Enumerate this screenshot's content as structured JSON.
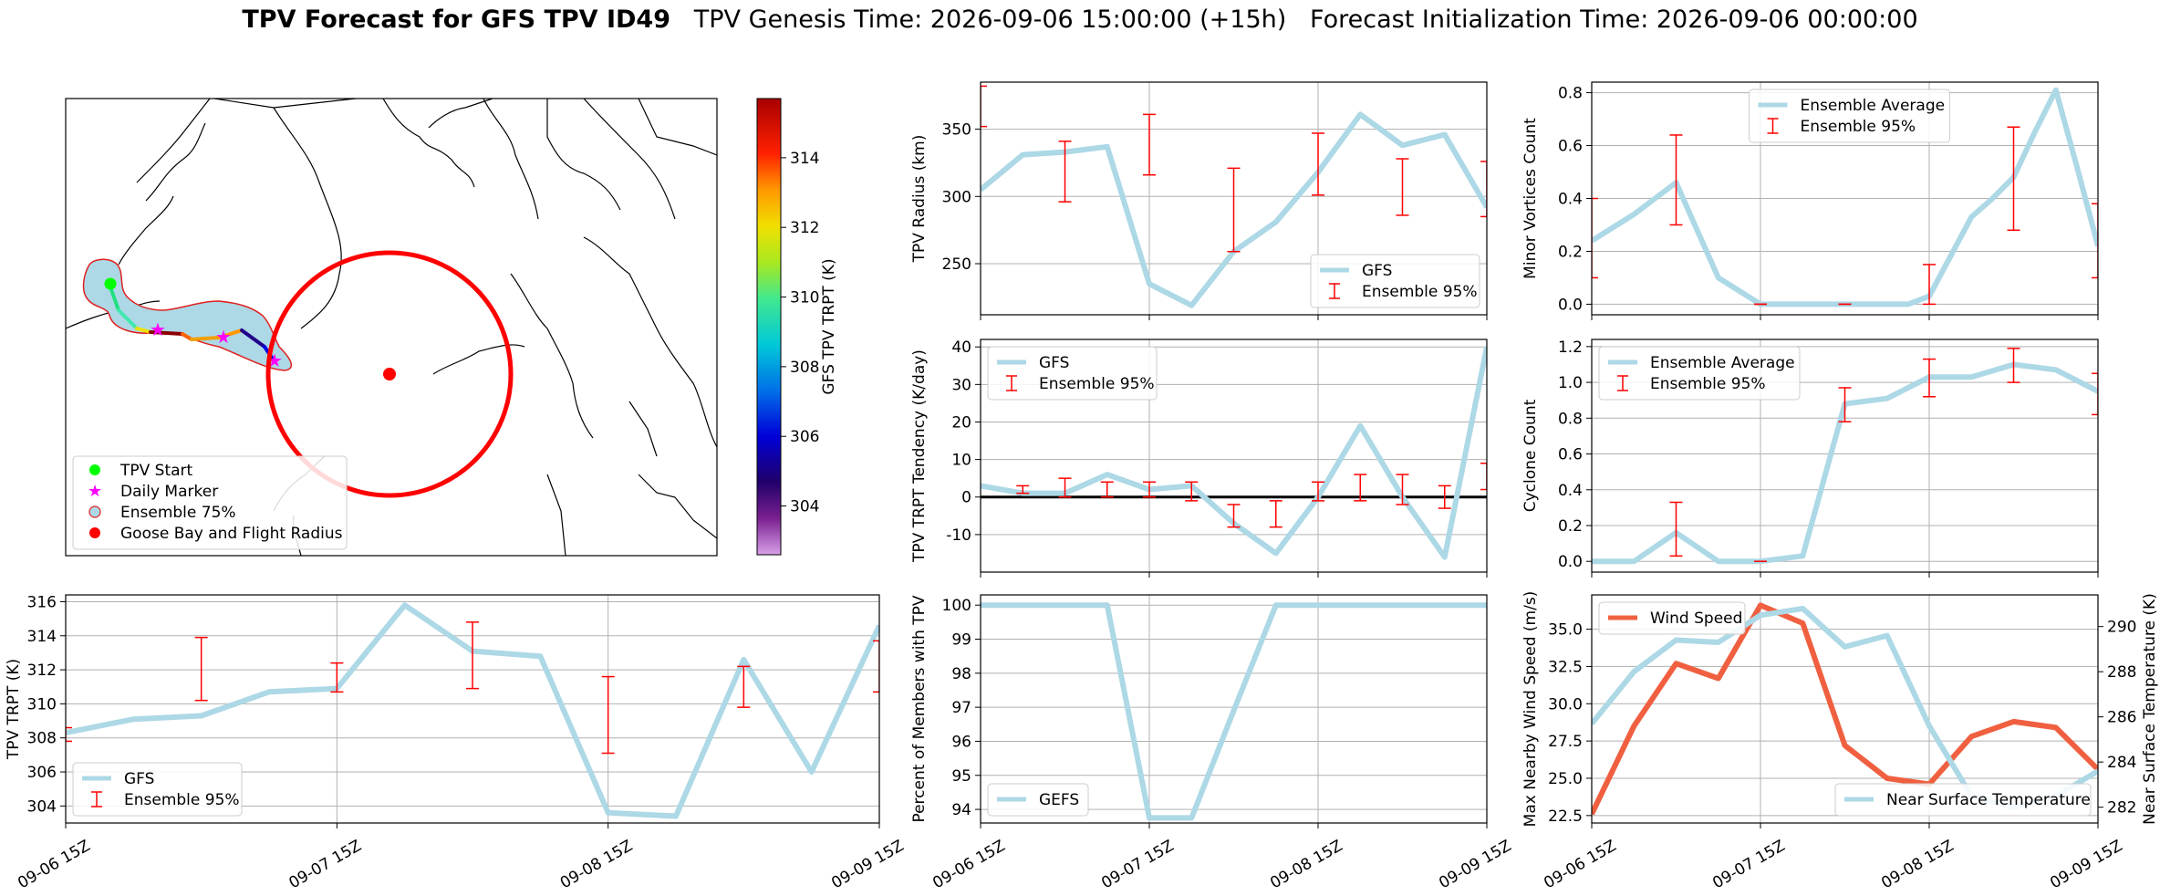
{
  "figure": {
    "title_bold": "TPV Forecast for GFS TPV ID49",
    "title_rest": "   TPV Genesis Time: 2026-09-06 15:00:00 (+15h)   Forecast Initialization Time: 2026-09-06 00:00:00"
  },
  "colors": {
    "line": "#add8e6",
    "errorbar": "#ff0000",
    "wind": "#f06040",
    "temp_axis": "#4169e1",
    "zero_line": "#000000"
  },
  "map": {
    "colorbar_label": "GFS TPV TRPT (K)",
    "colorbar_ticks": [
      304,
      306,
      308,
      310,
      312,
      314
    ],
    "colorbar_range": [
      302.6,
      315.7
    ],
    "legend": [
      {
        "label": "TPV Start",
        "marker": "green-circle"
      },
      {
        "label": "Daily Marker",
        "marker": "magenta-star"
      },
      {
        "label": "Ensemble 75%",
        "marker": "lightblue-circle-red-edge"
      },
      {
        "label": "Goose Bay and Flight Radius",
        "marker": "red-circle"
      }
    ]
  },
  "chart_data": [
    {
      "id": "radius",
      "type": "line",
      "ylabel": "TPV Radius (km)",
      "ylim": [
        212,
        385
      ],
      "yticks": [
        250,
        300,
        350
      ],
      "xlim": [
        0,
        72
      ],
      "x_grid": [
        24,
        48
      ],
      "xtick_labels": [],
      "series": [
        {
          "name": "GFS",
          "kind": "line",
          "x": [
            0,
            6,
            12,
            18,
            24,
            30,
            36,
            42,
            48,
            54,
            60,
            66,
            72
          ],
          "y": [
            305,
            331,
            333,
            337,
            235,
            219,
            259,
            281,
            318,
            361,
            338,
            346,
            292
          ]
        },
        {
          "name": "Ensemble 95%",
          "kind": "errorbar",
          "x": [
            0,
            12,
            24,
            36,
            48,
            60,
            72
          ],
          "low": [
            352,
            296,
            316,
            259,
            301,
            286,
            285
          ],
          "high": [
            382,
            341,
            361,
            321,
            347,
            328,
            326
          ]
        }
      ],
      "legend": [
        "GFS",
        "Ensemble 95%"
      ],
      "legend_position": "lower-right"
    },
    {
      "id": "minor",
      "type": "line",
      "ylabel": "Minor Vortices Count",
      "ylim": [
        -0.04,
        0.84
      ],
      "yticks": [
        0.0,
        0.2,
        0.4,
        0.6,
        0.8
      ],
      "ytick_labels": [
        "0.0",
        "0.2",
        "0.4",
        "0.6",
        "0.8"
      ],
      "xlim": [
        0,
        72
      ],
      "x_grid": [
        24,
        48
      ],
      "xtick_labels": [],
      "series": [
        {
          "name": "Ensemble Average",
          "kind": "line",
          "x": [
            0,
            3,
            6,
            9,
            12,
            15,
            18,
            21,
            24,
            27,
            30,
            33,
            36,
            39,
            42,
            45,
            48,
            51,
            54,
            57,
            60,
            63,
            66,
            69,
            72
          ],
          "y": [
            0.24,
            0.29,
            0.34,
            0.4,
            0.46,
            0.28,
            0.1,
            0.05,
            0.0,
            0.0,
            0.0,
            0.0,
            0.0,
            0.0,
            0.0,
            0.0,
            0.03,
            0.18,
            0.33,
            0.4,
            0.48,
            0.65,
            0.81,
            0.52,
            0.22
          ]
        },
        {
          "name": "Ensemble 95%",
          "kind": "errorbar",
          "x": [
            0,
            12,
            24,
            36,
            48,
            60,
            72
          ],
          "low": [
            0.1,
            0.3,
            0.0,
            0.0,
            0.0,
            0.28,
            0.1
          ],
          "high": [
            0.4,
            0.64,
            0.0,
            0.0,
            0.15,
            0.67,
            0.38
          ]
        }
      ],
      "legend": [
        "Ensemble Average",
        "Ensemble 95%"
      ],
      "legend_position": "upper-center"
    },
    {
      "id": "tendency",
      "type": "line",
      "ylabel": "TPV TRPT Tendency (K/day)",
      "ylim": [
        -20,
        42
      ],
      "yticks": [
        -10,
        0,
        10,
        20,
        30,
        40
      ],
      "xlim": [
        0,
        72
      ],
      "x_grid": [
        24,
        48
      ],
      "xtick_labels": [],
      "zero_line": 0,
      "series": [
        {
          "name": "GFS",
          "kind": "line",
          "x": [
            0,
            6,
            12,
            18,
            24,
            30,
            36,
            42,
            48,
            54,
            60,
            66,
            72
          ],
          "y": [
            3,
            1,
            1,
            6,
            2,
            3,
            -7,
            -15,
            0,
            19,
            0,
            -16,
            40
          ]
        },
        {
          "name": "Ensemble 95%",
          "kind": "errorbar",
          "x": [
            6,
            12,
            18,
            24,
            30,
            36,
            42,
            48,
            54,
            60,
            66,
            72
          ],
          "low": [
            1,
            0,
            0,
            0,
            -1,
            -8,
            -8,
            -1,
            -1,
            -2,
            -3,
            2
          ],
          "high": [
            3,
            5,
            4,
            4,
            4,
            -2,
            -1,
            4,
            6,
            6,
            3,
            9
          ]
        }
      ],
      "legend": [
        "GFS",
        "Ensemble 95%"
      ],
      "legend_position": "upper-left"
    },
    {
      "id": "cyclone",
      "type": "line",
      "ylabel": "Cyclone Count",
      "ylim": [
        -0.06,
        1.24
      ],
      "yticks": [
        0.0,
        0.2,
        0.4,
        0.6,
        0.8,
        1.0,
        1.2
      ],
      "ytick_labels": [
        "0.0",
        "0.2",
        "0.4",
        "0.6",
        "0.8",
        "1.0",
        "1.2"
      ],
      "xlim": [
        0,
        72
      ],
      "x_grid": [
        24,
        48
      ],
      "xtick_labels": [],
      "series": [
        {
          "name": "Ensemble Average",
          "kind": "line",
          "x": [
            0,
            6,
            12,
            18,
            24,
            30,
            36,
            42,
            48,
            54,
            60,
            66,
            72
          ],
          "y": [
            0.0,
            0.0,
            0.16,
            0.0,
            0.0,
            0.03,
            0.88,
            0.91,
            1.03,
            1.03,
            1.1,
            1.07,
            0.95
          ]
        },
        {
          "name": "Ensemble 95%",
          "kind": "errorbar",
          "x": [
            12,
            24,
            36,
            48,
            60,
            72
          ],
          "low": [
            0.03,
            0.0,
            0.78,
            0.92,
            1.0,
            0.82
          ],
          "high": [
            0.33,
            0.0,
            0.97,
            1.13,
            1.19,
            1.05
          ]
        }
      ],
      "legend": [
        "Ensemble Average",
        "Ensemble 95%"
      ],
      "legend_position": "upper-left"
    },
    {
      "id": "trpt",
      "type": "line",
      "ylabel": "TPV TRPT (K)",
      "ylim": [
        303,
        316.4
      ],
      "yticks": [
        304,
        306,
        308,
        310,
        312,
        314,
        316
      ],
      "xlim": [
        0,
        72
      ],
      "x_grid": [
        24,
        48
      ],
      "xticks": [
        0,
        24,
        48,
        72
      ],
      "xtick_labels": [
        "09-06 15Z",
        "09-07 15Z",
        "09-08 15Z",
        "09-09 15Z"
      ],
      "series": [
        {
          "name": "GFS",
          "kind": "line",
          "x": [
            0,
            6,
            12,
            18,
            24,
            30,
            36,
            42,
            48,
            54,
            60,
            66,
            72
          ],
          "y": [
            308.3,
            309.1,
            309.3,
            310.7,
            310.9,
            315.8,
            313.1,
            312.8,
            303.6,
            303.4,
            312.6,
            306.0,
            314.6
          ]
        },
        {
          "name": "Ensemble 95%",
          "kind": "errorbar",
          "x": [
            0,
            12,
            24,
            36,
            48,
            60,
            72
          ],
          "low": [
            307.8,
            310.2,
            310.7,
            310.9,
            307.1,
            309.8,
            310.7
          ],
          "high": [
            308.6,
            313.9,
            312.4,
            314.8,
            311.6,
            312.2,
            313.7
          ]
        }
      ],
      "legend": [
        "GFS",
        "Ensemble 95%"
      ],
      "legend_position": "lower-left"
    },
    {
      "id": "members",
      "type": "line",
      "ylabel": "Percent of Members with TPV",
      "ylim": [
        93.6,
        100.3
      ],
      "yticks": [
        94,
        95,
        96,
        97,
        98,
        99,
        100
      ],
      "xlim": [
        0,
        72
      ],
      "x_grid": [
        24,
        48
      ],
      "xticks": [
        0,
        24,
        48,
        72
      ],
      "xtick_labels": [
        "09-06 15Z",
        "09-07 15Z",
        "09-08 15Z",
        "09-09 15Z"
      ],
      "series": [
        {
          "name": "GEFS",
          "kind": "line",
          "x": [
            0,
            6,
            12,
            18,
            24,
            30,
            36,
            42,
            48,
            54,
            60,
            66,
            72
          ],
          "y": [
            100,
            100,
            100,
            100,
            93.75,
            93.75,
            96.9,
            100,
            100,
            100,
            100,
            100,
            100
          ]
        }
      ],
      "legend": [
        "GEFS"
      ],
      "legend_position": "lower-left"
    },
    {
      "id": "wind_temp",
      "type": "line",
      "ylabel": "Max Nearby Wind Speed (m/s)",
      "ylabel_right": "Near Surface Temperature (K)",
      "ylim": [
        22.0,
        37.3
      ],
      "yticks": [
        22.5,
        25.0,
        27.5,
        30.0,
        32.5,
        35.0
      ],
      "ytick_labels": [
        "22.5",
        "25.0",
        "27.5",
        "30.0",
        "32.5",
        "35.0"
      ],
      "ylim_right": [
        281.3,
        291.4
      ],
      "yticks_right": [
        282,
        284,
        286,
        288,
        290
      ],
      "xlim": [
        0,
        72
      ],
      "x_grid": [
        24,
        48
      ],
      "xticks": [
        0,
        24,
        48,
        72
      ],
      "xtick_labels": [
        "09-06 15Z",
        "09-07 15Z",
        "09-08 15Z",
        "09-09 15Z"
      ],
      "series": [
        {
          "name": "Wind Speed",
          "kind": "line",
          "axis": "left",
          "x": [
            0,
            6,
            12,
            18,
            24,
            30,
            36,
            42,
            48,
            54,
            60,
            66,
            72
          ],
          "y": [
            22.6,
            28.5,
            32.7,
            31.7,
            36.6,
            35.4,
            27.2,
            25.0,
            24.6,
            27.8,
            28.8,
            28.4,
            25.6
          ]
        },
        {
          "name": "Near Surface Temperature",
          "kind": "line",
          "axis": "right",
          "x": [
            0,
            6,
            12,
            18,
            24,
            30,
            36,
            42,
            48,
            54,
            60,
            66,
            72
          ],
          "y": [
            285.7,
            288.0,
            289.4,
            289.3,
            290.5,
            290.8,
            289.1,
            289.6,
            285.6,
            282.5,
            282.0,
            282.5,
            283.6
          ]
        }
      ],
      "legend": [
        "Wind Speed"
      ],
      "legend_right": [
        "Near Surface Temperature"
      ]
    }
  ]
}
